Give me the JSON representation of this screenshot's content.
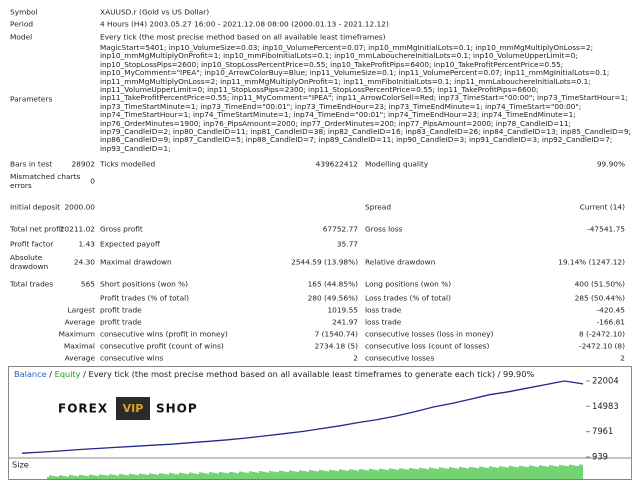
{
  "report": {
    "header_rows": [
      {
        "label": "Symbol",
        "value": "XAUUSD.r (Gold vs US Dollar)"
      },
      {
        "label": "Period",
        "value": "4 Hours (H4) 2003.05.27 16:00 - 2021.12.08 08:00 (2000.01.13 - 2021.12.12)"
      },
      {
        "label": "Model",
        "value": "Every tick (the most precise method based on all available least timeframes)"
      }
    ],
    "parameters": {
      "label": "Parameters",
      "lines": [
        "MagicStart=5401; inp10_VolumeSize=0.03; inp10_VolumePercent=0.07; inp10_mmMgInitialLots=0.1; inp10_mmMgMultiplyOnLoss=2;",
        "inp10_mmMgMultiplyOnProfit=1; inp10_mmFiboInitialLots=0.1; inp10_mmLabouchereInitialLots=0.1; inp10_VolumeUpperLimit=0;",
        "inp10_StopLossPips=2600; inp10_StopLossPercentPrice=0.55; inp10_TakeProfitPips=6400; inp10_TakeProfitPercentPrice=0.55;",
        "inp10_MyComment=\"IPEA\"; inp10_ArrowColorBuy=Blue; inp11_VolumeSize=0.1; inp11_VolumePercent=0.07; inp11_mmMgInitialLots=0.1;",
        "inp11_mmMgMultiplyOnLoss=2; inp11_mmMgMultiplyOnProfit=1; inp11_mmFiboInitialLots=0.1; inp11_mmLabouchereInitialLots=0.1;",
        "inp11_VolumeUpperLimit=0; inp11_StopLossPips=2300; inp11_StopLossPercentPrice=0.55; inp11_TakeProfitPips=6600;",
        "inp11_TakeProfitPercentPrice=0.55; inp11_MyComment=\"IPEA\"; inp11_ArrowColorSell=Red; inp73_TimeStart=\"00:00\"; inp73_TimeStartHour=1;",
        "inp73_TimeStartMinute=1; inp73_TimeEnd=\"00:01\"; inp73_TimeEndHour=23; inp73_TimeEndMinute=1; inp74_TimeStart=\"00:00\";",
        "inp74_TimeStartHour=1; inp74_TimeStartMinute=1; inp74_TimeEnd=\"00:01\"; inp74_TimeEndHour=23; inp74_TimeEndMinute=1;",
        "inp76_OrderMinutes=1900; inp76_PipsAmount=2000; inp77_OrderMinutes=200; inp77_PipsAmount=2000; inp78_CandleID=11;",
        "inp79_CandleID=2; inp80_CandleID=11; inp81_CandleID=38; inp82_CandleID=16; inp83_CandleID=26; inp84_CandleID=13; inp85_CandleID=9;",
        "inp86_CandleID=9; inp87_CandleID=5; inp88_CandleID=7; inp89_CandleID=11; inp90_CandleID=3; inp91_CandleID=3; inp92_CandleID=7;",
        "inp93_CandleID=1;"
      ]
    },
    "stats_rows": [
      {
        "label1": "Bars in test",
        "value1": "28902",
        "label2": "Ticks modelled",
        "value2": "439622412",
        "label3": "Modelling quality",
        "value3": "99.90%"
      },
      {
        "label1": "Mismatched charts errors",
        "value1": "0"
      },
      {
        "label1": "Initial deposit",
        "value1": "2000.00",
        "label3": "Spread",
        "value3": "Current (14)"
      },
      {
        "label1": "Total net profit",
        "value1": "20211.02",
        "label2": "Gross profit",
        "value2": "67752.77",
        "label3": "Gross loss",
        "value3": "-47541.75"
      },
      {
        "label1": "Profit factor",
        "value1": "1.43",
        "label2": "Expected payoff",
        "value2": "35.77"
      },
      {
        "label1": "Absolute drawdown",
        "value1": "24.30",
        "label2": "Maximal drawdown",
        "value2": "2544.59 (13.98%)",
        "label3": "Relative drawdown",
        "value3": "19.14% (1247.12)"
      },
      {
        "label1": "Total trades",
        "value1": "565",
        "label2": "Short positions (won %)",
        "value2": "165 (44.85%)",
        "label3": "Long positions (won %)",
        "value3": "400 (51.50%)"
      },
      {
        "label2": "Profit trades (% of total)",
        "value2": "280 (49.56%)",
        "label3": "Loss trades (% of total)",
        "value3": "285 (50.44%)"
      },
      {
        "value1": "Largest",
        "label2": "profit trade",
        "value2": "1019.55",
        "label3": "loss trade",
        "value3": "-420.45"
      },
      {
        "value1": "Average",
        "label2": "profit trade",
        "value2": "241.97",
        "label3": "loss trade",
        "value3": "-166.81"
      },
      {
        "value1": "Maximum",
        "label2": "consecutive wins (profit in money)",
        "value2": "7 (1540.74)",
        "label3": "consecutive losses (loss in money)",
        "value3": "8 (-2472.10)"
      },
      {
        "value1": "Maximal",
        "label2": "consecutive profit (count of wins)",
        "value2": "2734.18 (5)",
        "label3": "consecutive loss (count of losses)",
        "value3": "-2472.10 (8)"
      },
      {
        "value1": "Average",
        "label2": "consecutive wins",
        "value2": "2",
        "label3": "consecutive losses",
        "value3": "2"
      }
    ]
  },
  "chart_data": {
    "type": "line",
    "separator": "/",
    "subtitle": "Every tick (the most precise method based on all available least timeframes to generate each tick)",
    "quality": "99.90%",
    "series": [
      {
        "name": "Balance",
        "color": "#1f2a8c",
        "values": [
          2000,
          2300,
          2600,
          3000,
          3300,
          3600,
          3900,
          4200,
          4500,
          4900,
          5300,
          5700,
          6200,
          6800,
          7400,
          8000,
          8800,
          9600,
          10500,
          11300,
          12300,
          13500,
          14800,
          15800,
          17000,
          18200,
          19000,
          20000,
          21000,
          22004,
          21200
        ]
      },
      {
        "name": "Equity",
        "color": "#1f9a1f"
      }
    ],
    "ylim": [
      939,
      22004
    ],
    "yticks": [
      22004,
      14983,
      7961,
      939
    ],
    "grid": false,
    "size_label": "Size",
    "watermark": {
      "left": "FOREX",
      "badge": "VIP",
      "right": "SHOP"
    }
  }
}
